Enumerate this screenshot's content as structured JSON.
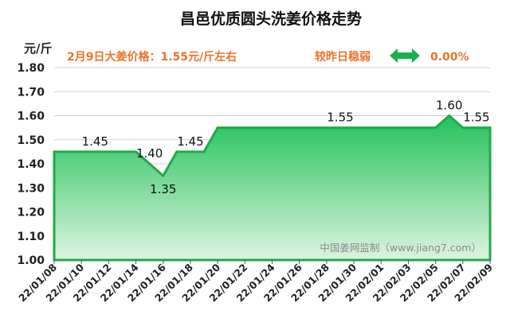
{
  "chart_data": {
    "type": "area",
    "title": "昌邑优质圆头洗姜价格走势",
    "ylabel": "元/斤",
    "ylim": [
      1.0,
      1.8
    ],
    "yticks": [
      "1.00",
      "1.10",
      "1.20",
      "1.30",
      "1.40",
      "1.50",
      "1.60",
      "1.70",
      "1.80"
    ],
    "x_tick_labels": [
      "22/01/08",
      "22/01/10",
      "22/01/12",
      "22/01/14",
      "22/01/16",
      "22/01/18",
      "22/01/20",
      "22/01/22",
      "22/01/24",
      "22/01/26",
      "22/01/28",
      "22/01/30",
      "22/02/01",
      "22/02/03",
      "22/02/05",
      "22/02/07",
      "22/02/09"
    ],
    "series": [
      {
        "x": [
          "22/01/08",
          "22/01/14",
          "22/01/15",
          "22/01/16",
          "22/01/17",
          "22/01/19",
          "22/01/20",
          "22/02/05",
          "22/02/06",
          "22/02/07",
          "22/02/09"
        ],
        "values": [
          1.45,
          1.45,
          1.4,
          1.35,
          1.45,
          1.45,
          1.55,
          1.55,
          1.6,
          1.55,
          1.55
        ]
      }
    ],
    "data_labels": [
      {
        "x": "22/01/11",
        "text": "1.45"
      },
      {
        "x": "22/01/15",
        "text": "1.40"
      },
      {
        "x": "22/01/16",
        "text": "1.35"
      },
      {
        "x": "22/01/18",
        "text": "1.45"
      },
      {
        "x": "22/01/29",
        "text": "1.55"
      },
      {
        "x": "22/02/06",
        "text": "1.60"
      },
      {
        "x": "22/02/08",
        "text": "1.55"
      }
    ],
    "grid": "horizontal",
    "colors": {
      "line": "#1faa4b",
      "fill_top": "#23c25a",
      "fill_bottom": "#ddf4e0",
      "info_text": "#e8742a",
      "arrow": "#1bb04f"
    }
  },
  "info": {
    "price_text": "2月9日大姜价格：1.55元/斤左右",
    "compare_text": "较昨日稳弱",
    "arrow_icon": "left-right-arrow-icon",
    "change_text": "0.00%"
  },
  "watermark": "中国姜网监制（www.jiang7.com）"
}
